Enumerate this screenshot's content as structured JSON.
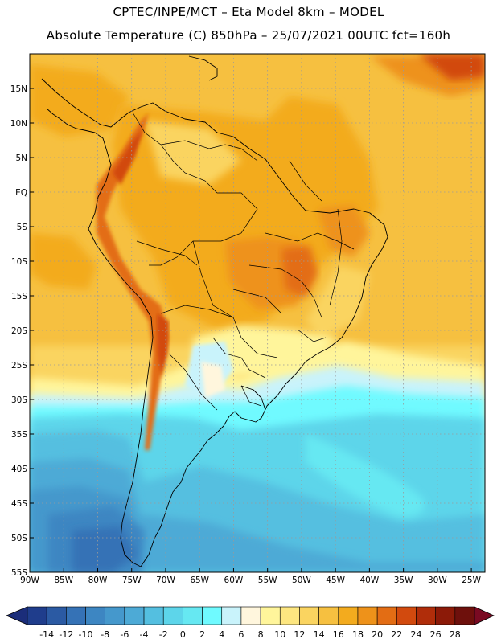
{
  "header": {
    "line1": "CPTEC/INPE/MCT –  Eta Model 8km – MODEL",
    "line2": "Absolute Temperature (C) 850hPa – 25/07/2021 00UTC fct=160h"
  },
  "map": {
    "lon_range": [
      -90,
      -23
    ],
    "lat_range": [
      -55,
      20
    ],
    "lat_labels": [
      "15N",
      "10N",
      "5N",
      "EQ",
      "5S",
      "10S",
      "15S",
      "20S",
      "25S",
      "30S",
      "35S",
      "40S",
      "45S",
      "50S",
      "55S"
    ],
    "lat_values": [
      15,
      10,
      5,
      0,
      -5,
      -10,
      -15,
      -20,
      -25,
      -30,
      -35,
      -40,
      -45,
      -50,
      -55
    ],
    "lon_labels": [
      "90W",
      "85W",
      "80W",
      "75W",
      "70W",
      "65W",
      "60W",
      "55W",
      "50W",
      "45W",
      "40W",
      "35W",
      "30W",
      "25W"
    ],
    "lon_values": [
      -90,
      -85,
      -80,
      -75,
      -70,
      -65,
      -60,
      -55,
      -50,
      -45,
      -40,
      -35,
      -30,
      -25
    ],
    "gridlines": "dotted"
  },
  "colorbar": {
    "labels": [
      "-14",
      "-12",
      "-10",
      "-8",
      "-6",
      "-4",
      "-2",
      "0",
      "2",
      "4",
      "6",
      "8",
      "10",
      "12",
      "14",
      "16",
      "18",
      "20",
      "22",
      "24",
      "26",
      "28"
    ],
    "colors": [
      "#1f3d8c",
      "#2b5aa3",
      "#3572b6",
      "#3d86c2",
      "#4598cc",
      "#4daad6",
      "#54bfe0",
      "#5dd5ea",
      "#66e8f2",
      "#6ffaff",
      "#c9f3fb",
      "#fff6dd",
      "#fff59b",
      "#fde680",
      "#fad460",
      "#f6c040",
      "#f3ab1e",
      "#ee921a",
      "#e36d14",
      "#d24a0e",
      "#b02d0a",
      "#8c1a08",
      "#6e100c"
    ],
    "under_color": "#1b2d7a",
    "over_color": "#7a0a22"
  }
}
